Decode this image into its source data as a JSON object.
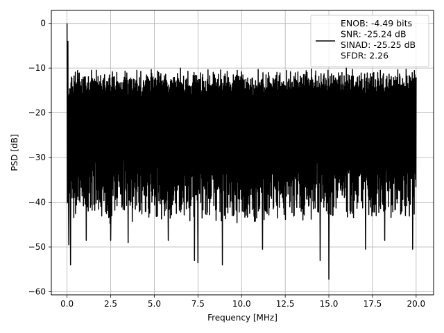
{
  "chart_data": {
    "type": "line",
    "title": "",
    "xlabel": "Frequency [MHz]",
    "ylabel": "PSD [dB]",
    "xlim": [
      -0.9,
      21.0
    ],
    "ylim": [
      -60.7,
      2.9
    ],
    "xticks": [
      0.0,
      2.5,
      5.0,
      7.5,
      10.0,
      12.5,
      15.0,
      17.5,
      20.0
    ],
    "xtick_labels": [
      "0.0",
      "2.5",
      "5.0",
      "7.5",
      "10.0",
      "12.5",
      "15.0",
      "17.5",
      "20.0"
    ],
    "yticks": [
      0,
      -10,
      -20,
      -30,
      -40,
      -50,
      -60
    ],
    "ytick_labels": [
      "0",
      "−10",
      "−20",
      "−30",
      "−40",
      "−50",
      "−60"
    ],
    "grid": true,
    "legend_position": "upper-right",
    "series": [
      {
        "name": "ENOB: -4.49 bits\nSNR: -25.24 dB\nSINAD: -25.25 dB\nSFDR: 2.26",
        "color": "#000000",
        "x_range": [
          0.0,
          20.0
        ],
        "noise_floor_upper_db": [
          -12,
          -16
        ],
        "noise_floor_lower_db": [
          -30,
          -42
        ],
        "peak_db": [
          [
            0.0,
            0.0
          ],
          [
            0.05,
            -4.0
          ],
          [
            0.1,
            -9.5
          ],
          [
            4.0,
            -10.5
          ],
          [
            6.5,
            -10.0
          ],
          [
            10.0,
            -10.8
          ],
          [
            14.0,
            -10.2
          ],
          [
            16.0,
            -10.0
          ]
        ],
        "dip_db": [
          [
            0.1,
            -49.5
          ],
          [
            0.2,
            -54.0
          ],
          [
            1.1,
            -48.5
          ],
          [
            2.5,
            -48.5
          ],
          [
            3.5,
            -49.0
          ],
          [
            5.8,
            -48.5
          ],
          [
            7.3,
            -53.0
          ],
          [
            7.5,
            -53.5
          ],
          [
            8.9,
            -54.0
          ],
          [
            11.2,
            -50.5
          ],
          [
            14.5,
            -53.0
          ],
          [
            15.0,
            -57.2
          ],
          [
            17.1,
            -50.5
          ],
          [
            18.2,
            -48.5
          ],
          [
            19.8,
            -50.5
          ]
        ]
      }
    ]
  }
}
